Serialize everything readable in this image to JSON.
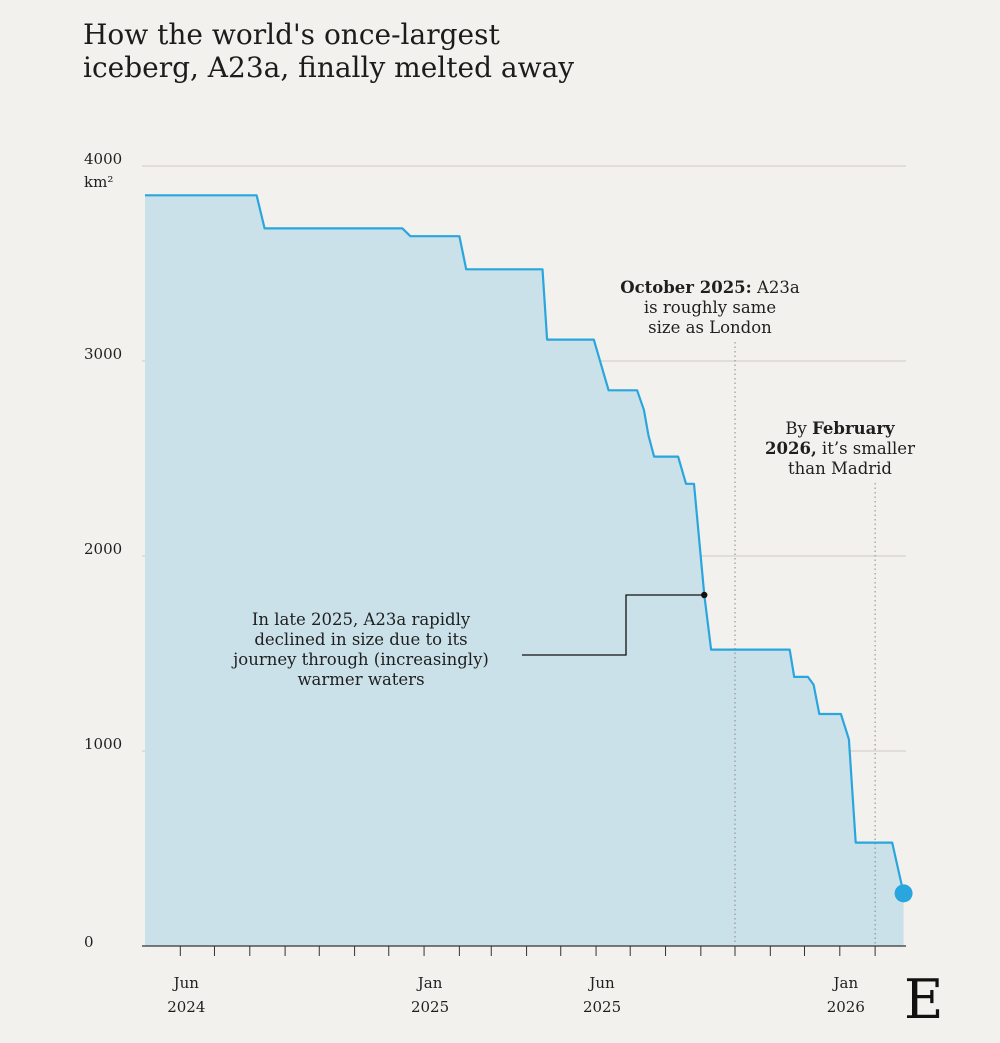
{
  "title_lines": [
    "How the world's once-largest",
    "iceberg, A23a, finally melted away"
  ],
  "logo_text": "E",
  "colors": {
    "line": "#29a6dd",
    "area": "#cbe1ea",
    "grid": "#cfcbc5",
    "axis": "#333333",
    "background": "#f3f1ed"
  },
  "chart_data": {
    "type": "area",
    "title": "How the world's once-largest iceberg, A23a, finally melted away",
    "y_unit": "km²",
    "ylim": [
      0,
      4000
    ],
    "y_ticks": [
      0,
      1000,
      2000,
      3000,
      4000
    ],
    "x_range": [
      "2024-05-01",
      "2026-03-01"
    ],
    "x_tick_labels": [
      {
        "date": "2024-06-01",
        "lines": [
          "Jun",
          "2024"
        ]
      },
      {
        "date": "2025-01-01",
        "lines": [
          "Jan",
          "2025"
        ]
      },
      {
        "date": "2025-06-01",
        "lines": [
          "Jun",
          "2025"
        ]
      },
      {
        "date": "2026-01-01",
        "lines": [
          "Jan",
          "2026"
        ]
      }
    ],
    "grid": true,
    "series": [
      {
        "points": [
          [
            "2024-05-01",
            3850
          ],
          [
            "2024-08-07",
            3850
          ],
          [
            "2024-08-14",
            3680
          ],
          [
            "2024-12-13",
            3680
          ],
          [
            "2024-12-20",
            3640
          ],
          [
            "2025-02-01",
            3640
          ],
          [
            "2025-02-07",
            3470
          ],
          [
            "2025-04-15",
            3470
          ],
          [
            "2025-04-19",
            3110
          ],
          [
            "2025-05-30",
            3110
          ],
          [
            "2025-06-12",
            2850
          ],
          [
            "2025-07-07",
            2850
          ],
          [
            "2025-07-13",
            2750
          ],
          [
            "2025-07-17",
            2620
          ],
          [
            "2025-07-22",
            2510
          ],
          [
            "2025-08-12",
            2510
          ],
          [
            "2025-08-19",
            2370
          ],
          [
            "2025-08-26",
            2370
          ],
          [
            "2025-09-04",
            1800
          ],
          [
            "2025-09-10",
            1520
          ],
          [
            "2025-11-18",
            1520
          ],
          [
            "2025-11-22",
            1380
          ],
          [
            "2025-12-04",
            1380
          ],
          [
            "2025-12-09",
            1340
          ],
          [
            "2025-12-14",
            1190
          ],
          [
            "2026-01-02",
            1190
          ],
          [
            "2026-01-09",
            1060
          ],
          [
            "2026-01-15",
            530
          ],
          [
            "2026-02-16",
            530
          ],
          [
            "2026-02-26",
            270
          ]
        ]
      }
    ],
    "annotations": [
      {
        "id": "late-2025",
        "lines": [
          "In late 2025, A23a rapidly",
          "declined in size due to its",
          "journey through (increasingly)",
          "warmer waters"
        ],
        "point": [
          "2025-09-04",
          1800
        ]
      },
      {
        "id": "october-2025",
        "bold": "October 2025:",
        "lines_rest": [
          " A23a",
          "is roughly same",
          "size as London"
        ],
        "marker_date": "2025-10-01"
      },
      {
        "id": "february-2026",
        "line1_plain": "By ",
        "line1_bold": "February",
        "line2_bold": "2026,",
        "line2_rest": " it’s smaller",
        "line3": "than Madrid",
        "marker_date": "2026-02-01"
      }
    ]
  }
}
